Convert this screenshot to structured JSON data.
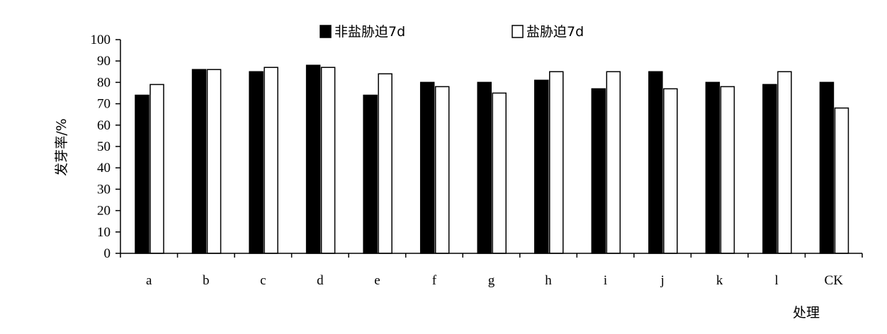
{
  "chart_data": {
    "type": "bar",
    "title": "",
    "xlabel": "处理",
    "ylabel": "发芽率/%",
    "ylim": [
      0,
      100
    ],
    "yticks": [
      0,
      10,
      20,
      30,
      40,
      50,
      60,
      70,
      80,
      90,
      100
    ],
    "categories": [
      "a",
      "b",
      "c",
      "d",
      "e",
      "f",
      "g",
      "h",
      "i",
      "j",
      "k",
      "l",
      "CK"
    ],
    "legend_position": "top",
    "series": [
      {
        "name": "非盐胁迫7d",
        "color": "#000000",
        "values": [
          74,
          86,
          85,
          88,
          74,
          80,
          80,
          81,
          77,
          85,
          80,
          79,
          80
        ]
      },
      {
        "name": "盐胁迫7d",
        "color": "#ffffff",
        "values": [
          79,
          86,
          87,
          87,
          84,
          78,
          75,
          85,
          85,
          77,
          78,
          85,
          68
        ]
      }
    ]
  }
}
